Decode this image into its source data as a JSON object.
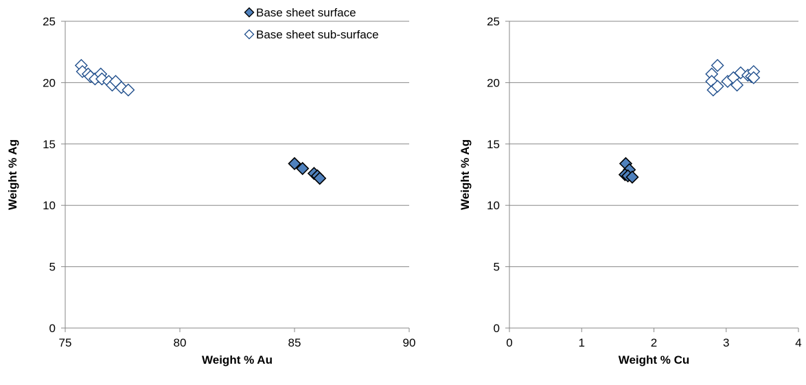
{
  "chart_data": [
    {
      "type": "scatter",
      "title": "",
      "xlabel": "Weight % Au",
      "ylabel": "Weight % Ag",
      "xlim": [
        75,
        90
      ],
      "ylim": [
        0,
        25
      ],
      "xticks": [
        "75",
        "80",
        "85",
        "90"
      ],
      "yticks": [
        "0",
        "5",
        "10",
        "15",
        "20",
        "25"
      ],
      "grid": "horizontal",
      "legend": "top-right",
      "series": [
        {
          "name": "Base sheet surface",
          "color": "#4F81BD",
          "marker": "filled-diamond",
          "points": [
            {
              "x": 85.0,
              "y": 13.4
            },
            {
              "x": 85.35,
              "y": 13.0
            },
            {
              "x": 85.85,
              "y": 12.6
            },
            {
              "x": 86.0,
              "y": 12.4
            },
            {
              "x": 86.1,
              "y": 12.2
            }
          ]
        },
        {
          "name": "Base sheet sub-surface",
          "color": "#1F4E8C",
          "marker": "hollow-diamond",
          "points": [
            {
              "x": 75.7,
              "y": 21.4
            },
            {
              "x": 75.75,
              "y": 20.9
            },
            {
              "x": 76.0,
              "y": 20.7
            },
            {
              "x": 76.1,
              "y": 20.5
            },
            {
              "x": 76.3,
              "y": 20.3
            },
            {
              "x": 76.55,
              "y": 20.7
            },
            {
              "x": 76.6,
              "y": 20.3
            },
            {
              "x": 76.9,
              "y": 20.1
            },
            {
              "x": 77.05,
              "y": 19.8
            },
            {
              "x": 77.2,
              "y": 20.1
            },
            {
              "x": 77.45,
              "y": 19.6
            },
            {
              "x": 77.75,
              "y": 19.4
            }
          ]
        }
      ]
    },
    {
      "type": "scatter",
      "title": "",
      "xlabel": "Weight % Cu",
      "ylabel": "Weight % Ag",
      "xlim": [
        0,
        4
      ],
      "ylim": [
        0,
        25
      ],
      "xticks": [
        "0",
        "1",
        "2",
        "3",
        "4"
      ],
      "yticks": [
        "0",
        "5",
        "10",
        "15",
        "20",
        "25"
      ],
      "grid": "horizontal",
      "legend": "none",
      "series": [
        {
          "color": "#4F81BD",
          "marker": "filled-diamond",
          "points": [
            {
              "x": 1.61,
              "y": 13.4
            },
            {
              "x": 1.66,
              "y": 12.9
            },
            {
              "x": 1.6,
              "y": 12.5
            },
            {
              "x": 1.64,
              "y": 12.4
            },
            {
              "x": 1.7,
              "y": 12.3
            }
          ]
        },
        {
          "color": "#1F4E8C",
          "marker": "hollow-diamond",
          "points": [
            {
              "x": 2.8,
              "y": 20.7
            },
            {
              "x": 2.8,
              "y": 20.1
            },
            {
              "x": 2.82,
              "y": 19.4
            },
            {
              "x": 2.88,
              "y": 21.4
            },
            {
              "x": 2.88,
              "y": 19.7
            },
            {
              "x": 3.02,
              "y": 20.1
            },
            {
              "x": 3.1,
              "y": 20.4
            },
            {
              "x": 3.15,
              "y": 19.8
            },
            {
              "x": 3.2,
              "y": 20.8
            },
            {
              "x": 3.3,
              "y": 20.6
            },
            {
              "x": 3.35,
              "y": 20.5
            },
            {
              "x": 3.38,
              "y": 20.9
            },
            {
              "x": 3.38,
              "y": 20.4
            }
          ]
        }
      ]
    }
  ]
}
